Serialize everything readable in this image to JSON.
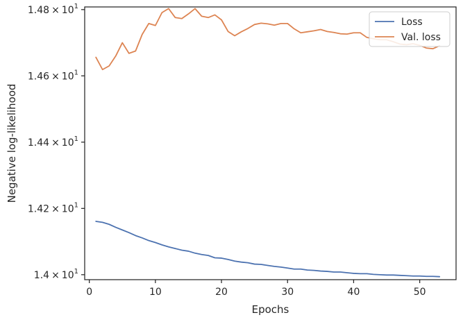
{
  "chart_data": {
    "type": "line",
    "xlabel": "Epochs",
    "ylabel": "Negative log-likelihood",
    "xlim": [
      -0.7,
      55.5
    ],
    "ylim": [
      13.985,
      14.808
    ],
    "x_ticks": [
      0,
      10,
      20,
      30,
      40,
      50
    ],
    "y_ticks": [
      14.0,
      14.2,
      14.4,
      14.6,
      14.8
    ],
    "y_tick_labels": [
      {
        "mantissa": "1.4",
        "base": "10",
        "exp": "1"
      },
      {
        "mantissa": "1.42",
        "base": "10",
        "exp": "1"
      },
      {
        "mantissa": "1.44",
        "base": "10",
        "exp": "1"
      },
      {
        "mantissa": "1.46",
        "base": "10",
        "exp": "1"
      },
      {
        "mantissa": "1.48",
        "base": "10",
        "exp": "1"
      }
    ],
    "times_sign": "×",
    "grid": false,
    "legend_position": "top-right",
    "x": [
      1,
      2,
      3,
      4,
      5,
      6,
      7,
      8,
      9,
      10,
      11,
      12,
      13,
      14,
      15,
      16,
      17,
      18,
      19,
      20,
      21,
      22,
      23,
      24,
      25,
      26,
      27,
      28,
      29,
      30,
      31,
      32,
      33,
      34,
      35,
      36,
      37,
      38,
      39,
      40,
      41,
      42,
      43,
      44,
      45,
      46,
      47,
      48,
      49,
      50,
      51,
      52,
      53
    ],
    "series": [
      {
        "name": "Loss",
        "color": "#4c72b0",
        "values": [
          14.161,
          14.158,
          14.152,
          14.143,
          14.135,
          14.127,
          14.118,
          14.111,
          14.103,
          14.097,
          14.09,
          14.084,
          14.079,
          14.074,
          14.071,
          14.065,
          14.061,
          14.058,
          14.051,
          14.05,
          14.046,
          14.041,
          14.038,
          14.036,
          14.032,
          14.031,
          14.028,
          14.025,
          14.023,
          14.02,
          14.017,
          14.017,
          14.014,
          14.013,
          14.011,
          14.01,
          14.008,
          14.008,
          14.006,
          14.004,
          14.003,
          14.003,
          14.001,
          14.0,
          13.999,
          13.999,
          13.998,
          13.997,
          13.996,
          13.996,
          13.995,
          13.995,
          13.994
        ]
      },
      {
        "name": "Val. loss",
        "color": "#dd8452",
        "values": [
          14.656,
          14.619,
          14.63,
          14.66,
          14.7,
          14.668,
          14.675,
          14.725,
          14.758,
          14.752,
          14.791,
          14.803,
          14.776,
          14.773,
          14.787,
          14.803,
          14.78,
          14.776,
          14.784,
          14.769,
          14.734,
          14.721,
          14.733,
          14.743,
          14.755,
          14.759,
          14.757,
          14.753,
          14.758,
          14.758,
          14.742,
          14.73,
          14.733,
          14.736,
          14.74,
          14.734,
          14.731,
          14.727,
          14.726,
          14.73,
          14.73,
          14.716,
          14.712,
          14.709,
          14.709,
          14.703,
          14.696,
          14.694,
          14.697,
          14.692,
          14.684,
          14.682,
          14.691
        ]
      }
    ]
  }
}
